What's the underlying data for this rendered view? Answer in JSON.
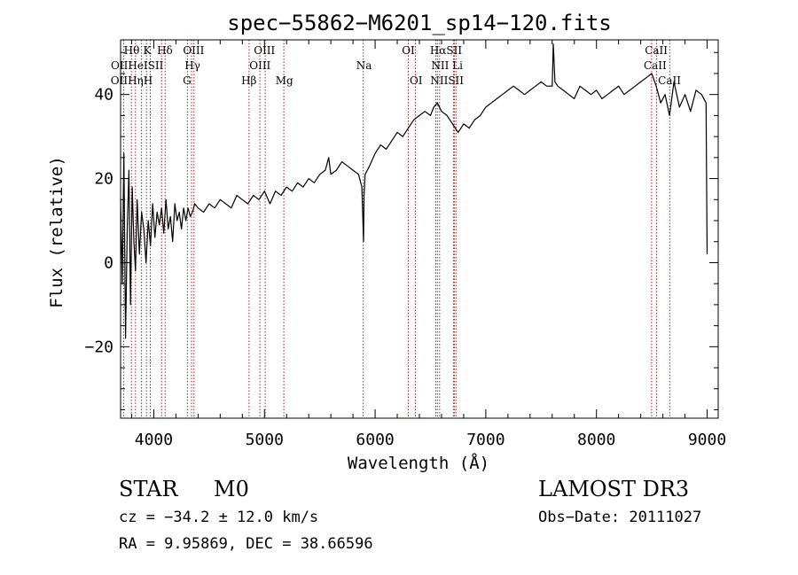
{
  "chart_data": {
    "type": "line",
    "title": "spec−55862−M6201_sp14−120.fits",
    "xlabel": "Wavelength (Å)",
    "ylabel": "Flux (relative)",
    "xlim": [
      3700,
      9100
    ],
    "ylim": [
      -37,
      53
    ],
    "x_ticks": [
      4000,
      5000,
      6000,
      7000,
      8000,
      9000
    ],
    "x_tick_labels": [
      "4000",
      "5000",
      "6000",
      "7000",
      "8000",
      "9000"
    ],
    "y_ticks": [
      -20,
      0,
      20,
      40
    ],
    "y_tick_labels": [
      "−20",
      "0",
      "20",
      "40"
    ],
    "series": [
      {
        "name": "spectrum",
        "x": [
          3700,
          3715,
          3730,
          3745,
          3760,
          3775,
          3790,
          3805,
          3820,
          3835,
          3850,
          3870,
          3890,
          3910,
          3930,
          3950,
          3970,
          3990,
          4010,
          4030,
          4050,
          4070,
          4090,
          4110,
          4130,
          4150,
          4170,
          4190,
          4210,
          4230,
          4250,
          4270,
          4290,
          4310,
          4330,
          4350,
          4370,
          4400,
          4450,
          4500,
          4550,
          4600,
          4650,
          4700,
          4750,
          4800,
          4850,
          4900,
          4950,
          5000,
          5050,
          5100,
          5150,
          5200,
          5250,
          5300,
          5350,
          5400,
          5450,
          5500,
          5550,
          5580,
          5600,
          5650,
          5700,
          5750,
          5800,
          5850,
          5880,
          5890,
          5895,
          5900,
          5910,
          5950,
          6000,
          6050,
          6100,
          6150,
          6200,
          6250,
          6300,
          6350,
          6400,
          6450,
          6500,
          6530,
          6563,
          6600,
          6650,
          6700,
          6750,
          6800,
          6850,
          6900,
          6950,
          7000,
          7050,
          7100,
          7150,
          7200,
          7250,
          7300,
          7350,
          7400,
          7450,
          7500,
          7550,
          7600,
          7610,
          7625,
          7650,
          7700,
          7750,
          7800,
          7850,
          7900,
          7950,
          8000,
          8050,
          8100,
          8150,
          8200,
          8250,
          8300,
          8350,
          8400,
          8450,
          8500,
          8540,
          8580,
          8620,
          8660,
          8700,
          8750,
          8800,
          8850,
          8900,
          8950,
          8990,
          9000
        ],
        "values": [
          15,
          -5,
          26,
          -18,
          8,
          22,
          -10,
          18,
          5,
          -2,
          15,
          2,
          12,
          8,
          0,
          10,
          4,
          14,
          6,
          12,
          9,
          13,
          7,
          15,
          8,
          11,
          5,
          14,
          10,
          12,
          8,
          13,
          10,
          13,
          11,
          12,
          14,
          13,
          12,
          14,
          13,
          15,
          14,
          13,
          16,
          15,
          14,
          16,
          15,
          17,
          14,
          17,
          16,
          18,
          17,
          19,
          18,
          20,
          19,
          21,
          22,
          25,
          21,
          22,
          24,
          23,
          22,
          21,
          18,
          10,
          5,
          16,
          21,
          23,
          26,
          28,
          27,
          29,
          31,
          30,
          32,
          34,
          35,
          36,
          35,
          37,
          38,
          36,
          35,
          33,
          31,
          33,
          32,
          34,
          35,
          37,
          38,
          39,
          40,
          41,
          42,
          41,
          40,
          41,
          42,
          43,
          42,
          42,
          52,
          43,
          42,
          41,
          40,
          39,
          42,
          41,
          40,
          41,
          39,
          40,
          41,
          42,
          40,
          41,
          42,
          43,
          44,
          45,
          42,
          38,
          40,
          35,
          43,
          37,
          40,
          36,
          41,
          40,
          38,
          2
        ]
      }
    ],
    "line_markers": [
      {
        "label": "O II",
        "x": 3727
      },
      {
        "label": "Hθ",
        "x": 3798
      },
      {
        "label": "Hη",
        "x": 3835
      },
      {
        "label": "HeI",
        "x": 3889
      },
      {
        "label": "K",
        "x": 3934
      },
      {
        "label": "H",
        "x": 3968
      },
      {
        "label": "SII",
        "x": 4070
      },
      {
        "label": "Hδ",
        "x": 4102
      },
      {
        "label": "G",
        "x": 4304
      },
      {
        "label": "Hγ",
        "x": 4341
      },
      {
        "label": "OIII",
        "x": 4363
      },
      {
        "label": "Hβ",
        "x": 4861
      },
      {
        "label": "OIII",
        "x": 4959
      },
      {
        "label": "OIII",
        "x": 5007
      },
      {
        "label": "Mg",
        "x": 5175
      },
      {
        "label": "Na",
        "x": 5893
      },
      {
        "label": "OI",
        "x": 6300
      },
      {
        "label": "OI",
        "x": 6364
      },
      {
        "label": "NII",
        "x": 6548
      },
      {
        "label": "Hα",
        "x": 6563
      },
      {
        "label": "NII",
        "x": 6583
      },
      {
        "label": "Li",
        "x": 6708
      },
      {
        "label": "SII",
        "x": 6716
      },
      {
        "label": "SII",
        "x": 6731
      },
      {
        "label": "CaII",
        "x": 8498
      },
      {
        "label": "CaII",
        "x": 8542
      },
      {
        "label": "CaII",
        "x": 8662
      }
    ],
    "line_labels": [
      {
        "text": "Hθ",
        "x": 3800,
        "row": 1
      },
      {
        "text": "K",
        "x": 3940,
        "row": 1
      },
      {
        "text": "Hδ",
        "x": 4100,
        "row": 1
      },
      {
        "text": "OIII",
        "x": 4360,
        "row": 1
      },
      {
        "text": "OIII",
        "x": 5000,
        "row": 1
      },
      {
        "text": "OI",
        "x": 6300,
        "row": 1
      },
      {
        "text": "HαSII",
        "x": 6640,
        "row": 1
      },
      {
        "text": "CaII",
        "x": 8540,
        "row": 1
      },
      {
        "text": "OIIHeISII",
        "x": 3850,
        "row": 2
      },
      {
        "text": "Hγ",
        "x": 4350,
        "row": 2
      },
      {
        "text": "OIII",
        "x": 4960,
        "row": 2
      },
      {
        "text": "Na",
        "x": 5900,
        "row": 2
      },
      {
        "text": "NII Li",
        "x": 6650,
        "row": 2
      },
      {
        "text": "CaII",
        "x": 8530,
        "row": 2
      },
      {
        "text": "OIIHηH",
        "x": 3800,
        "row": 3
      },
      {
        "text": "G",
        "x": 4300,
        "row": 3
      },
      {
        "text": "Hβ",
        "x": 4860,
        "row": 3
      },
      {
        "text": "Mg",
        "x": 5180,
        "row": 3
      },
      {
        "text": "OI",
        "x": 6370,
        "row": 3
      },
      {
        "text": "NIISII",
        "x": 6650,
        "row": 3
      },
      {
        "text": "CaII",
        "x": 8660,
        "row": 3
      }
    ]
  },
  "info": {
    "object_type": "STAR",
    "subclass": "M0",
    "survey": "LAMOST DR3",
    "redshift": "cz = −34.2 ± 12.0 km/s",
    "obs_date": "Obs−Date: 20111027",
    "coords": "RA =   9.95869, DEC =  38.66596"
  }
}
